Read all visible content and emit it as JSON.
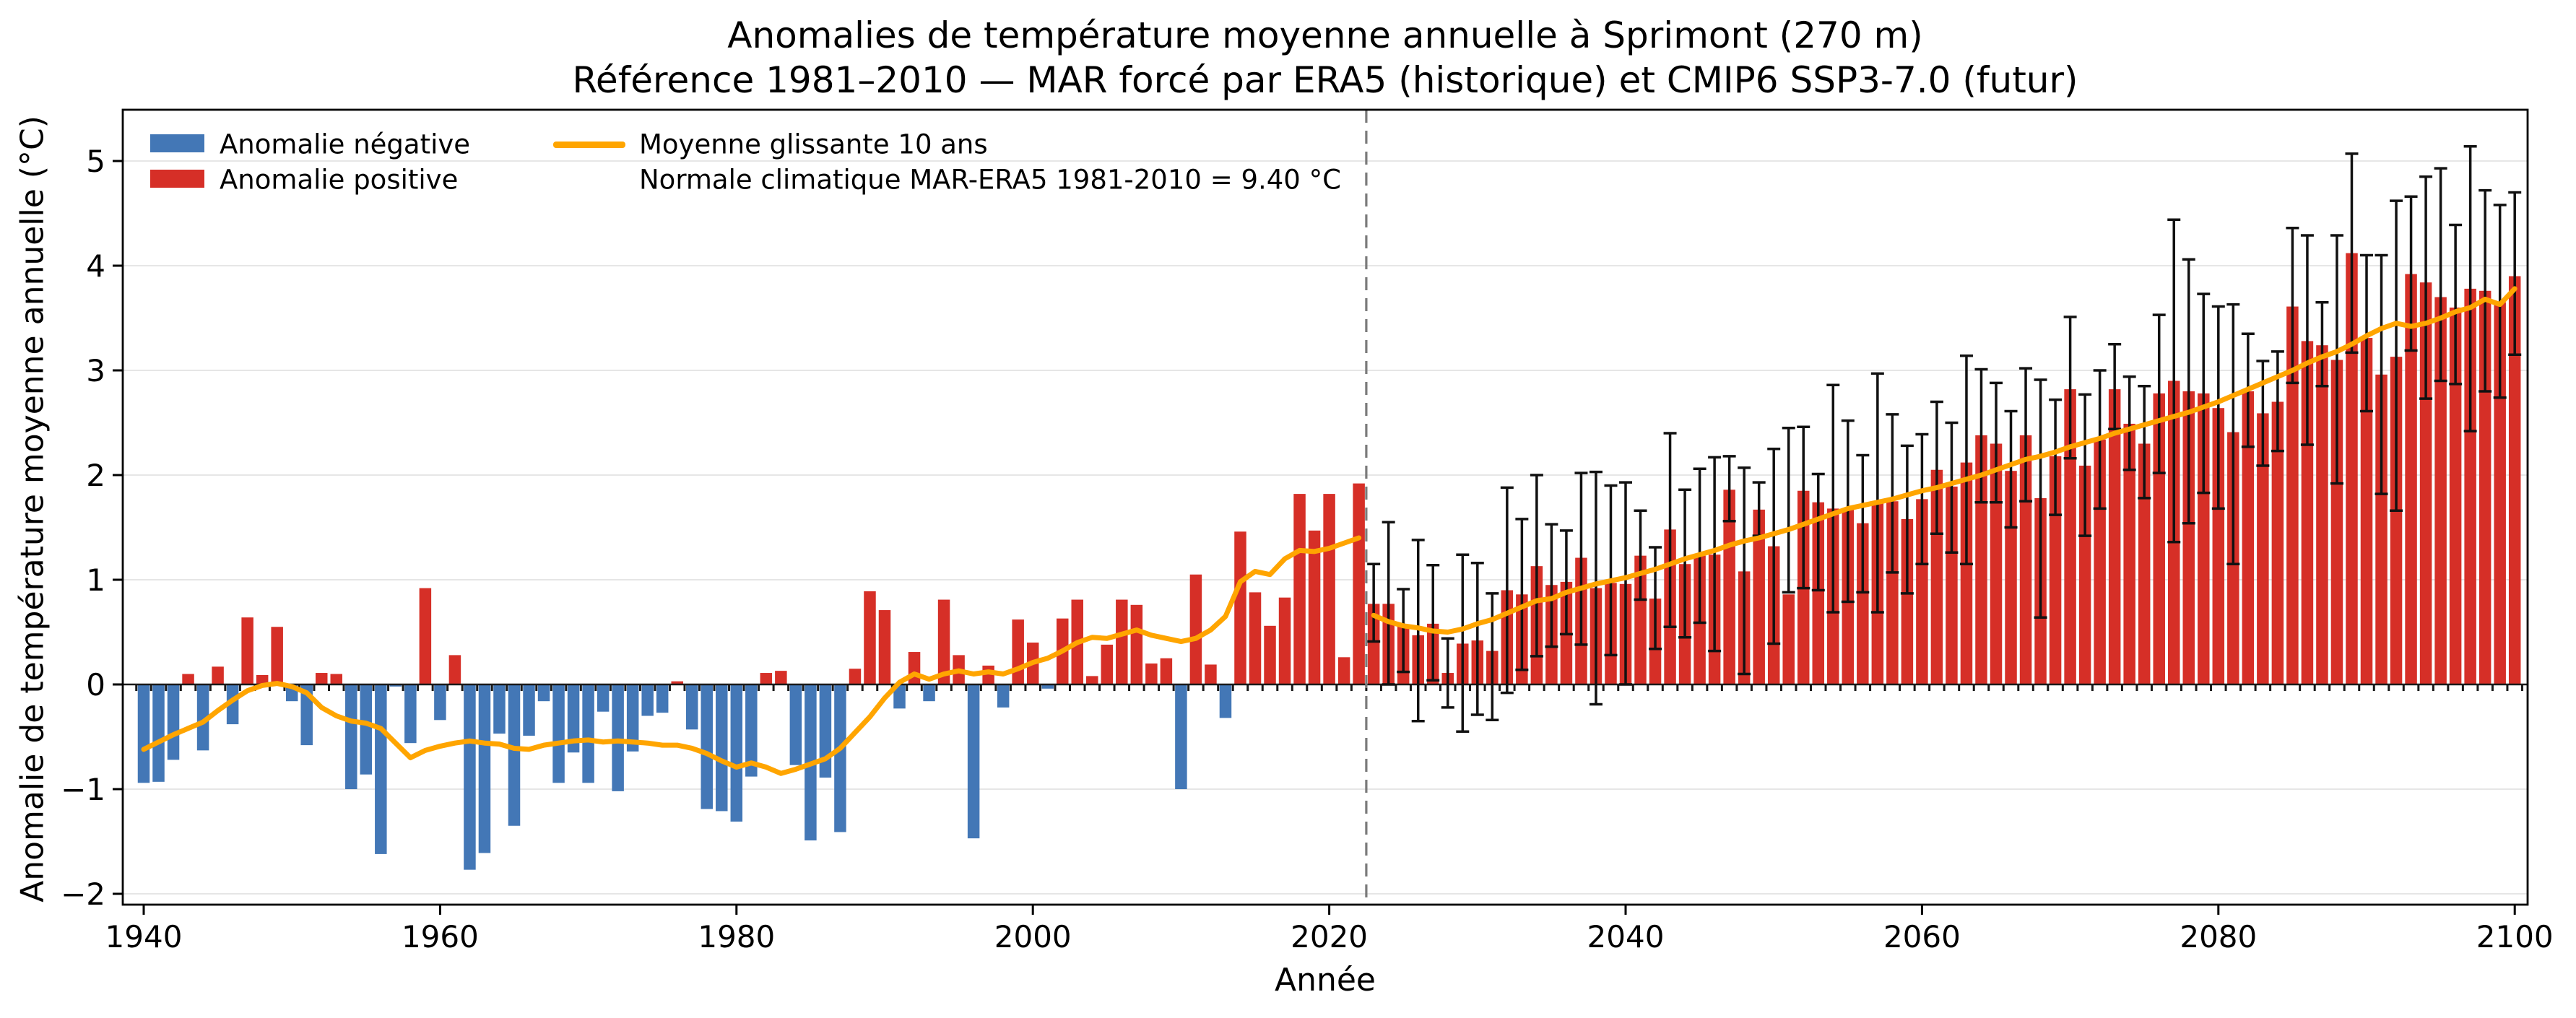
{
  "figure": {
    "title_line1": "Anomalies de température moyenne annuelle à Sprimont (270 m)",
    "title_line2": "Référence 1981–2010 — MAR forcé par ERA5 (historique) et CMIP6 SSP3-7.0 (futur)"
  },
  "legend": {
    "negative_label": "Anomalie négative",
    "positive_label": "Anomalie positive",
    "rolling_label": "Moyenne glissante 10 ans",
    "normal_label": "Normale climatique MAR-ERA5 1981-2010 = 9.40 °C"
  },
  "chart_data": {
    "type": "bar",
    "title": "Anomalies de température moyenne annuelle à Sprimont (270 m)",
    "subtitle": "Référence 1981–2010 — MAR forcé par ERA5 (historique) et CMIP6 SSP3-7.0 (futur)",
    "xlabel": "Année",
    "ylabel": "Anomalie de température moyenne annuelle (°C)",
    "xlim": [
      1938.6,
      2101.0
    ],
    "ylim": [
      -2.07,
      5.49
    ],
    "xticks": [
      1940,
      1960,
      1980,
      2000,
      2020,
      2040,
      2060,
      2080,
      2100
    ],
    "yticks": [
      -2,
      -1,
      0,
      1,
      2,
      3,
      4,
      5
    ],
    "grid": "horizontal-only",
    "legend_position": "upper-left",
    "boundary_year": 2022.5,
    "historical_period": [
      1940,
      2022
    ],
    "future_period": [
      2023,
      2100
    ],
    "colors": {
      "negative": "#4377b6",
      "positive": "#d62f27",
      "rolling": "#ffa500",
      "errorbar": "#111111",
      "zero_line": "#1a1a1a",
      "boundary_line": "#7a7a7a",
      "gridline": "#e6e6e6",
      "spine": "#000000"
    },
    "series": {
      "years": [
        1940,
        1941,
        1942,
        1943,
        1944,
        1945,
        1946,
        1947,
        1948,
        1949,
        1950,
        1951,
        1952,
        1953,
        1954,
        1955,
        1956,
        1957,
        1958,
        1959,
        1960,
        1961,
        1962,
        1963,
        1964,
        1965,
        1966,
        1967,
        1968,
        1969,
        1970,
        1971,
        1972,
        1973,
        1974,
        1975,
        1976,
        1977,
        1978,
        1979,
        1980,
        1981,
        1982,
        1983,
        1984,
        1985,
        1986,
        1987,
        1988,
        1989,
        1990,
        1991,
        1992,
        1993,
        1994,
        1995,
        1996,
        1997,
        1998,
        1999,
        2000,
        2001,
        2002,
        2003,
        2004,
        2005,
        2006,
        2007,
        2008,
        2009,
        2010,
        2011,
        2012,
        2013,
        2014,
        2015,
        2016,
        2017,
        2018,
        2019,
        2020,
        2021,
        2022,
        2023,
        2024,
        2025,
        2026,
        2027,
        2028,
        2029,
        2030,
        2031,
        2032,
        2033,
        2034,
        2035,
        2036,
        2037,
        2038,
        2039,
        2040,
        2041,
        2042,
        2043,
        2044,
        2045,
        2046,
        2047,
        2048,
        2049,
        2050,
        2051,
        2052,
        2053,
        2054,
        2055,
        2056,
        2057,
        2058,
        2059,
        2060,
        2061,
        2062,
        2063,
        2064,
        2065,
        2066,
        2067,
        2068,
        2069,
        2070,
        2071,
        2072,
        2073,
        2074,
        2075,
        2076,
        2077,
        2078,
        2079,
        2080,
        2081,
        2082,
        2083,
        2084,
        2085,
        2086,
        2087,
        2088,
        2089,
        2090,
        2091,
        2092,
        2093,
        2094,
        2095,
        2096,
        2097,
        2098,
        2099,
        2100
      ],
      "anomaly": [
        -0.94,
        -0.93,
        -0.72,
        0.1,
        -0.63,
        0.17,
        -0.38,
        0.64,
        0.09,
        0.55,
        -0.16,
        -0.58,
        0.11,
        0.1,
        -1.0,
        -0.86,
        -1.62,
        -0.02,
        -0.56,
        0.92,
        -0.34,
        0.28,
        -1.77,
        -1.61,
        -0.47,
        -1.35,
        -0.49,
        -0.16,
        -0.94,
        -0.65,
        -0.94,
        -0.26,
        -1.02,
        -0.64,
        -0.3,
        -0.27,
        0.03,
        -0.43,
        -1.19,
        -1.21,
        -1.31,
        -0.88,
        0.11,
        0.13,
        -0.77,
        -1.49,
        -0.89,
        -1.41,
        0.15,
        0.89,
        0.71,
        -0.23,
        0.31,
        -0.16,
        0.81,
        0.28,
        -1.47,
        0.18,
        -0.22,
        0.62,
        0.4,
        -0.04,
        0.63,
        0.81,
        0.08,
        0.38,
        0.81,
        0.76,
        0.2,
        0.25,
        -1.0,
        1.05,
        0.19,
        -0.32,
        1.46,
        0.88,
        0.56,
        0.83,
        1.82,
        1.47,
        1.82,
        0.26,
        1.92,
        0.77,
        0.77,
        0.57,
        0.47,
        0.58,
        0.11,
        0.39,
        0.42,
        0.32,
        0.9,
        0.86,
        1.13,
        0.95,
        0.98,
        1.21,
        0.92,
        0.97,
        0.96,
        1.23,
        0.82,
        1.48,
        1.15,
        1.23,
        1.24,
        1.86,
        1.08,
        1.67,
        1.32,
        0.86,
        1.85,
        1.74,
        1.68,
        1.67,
        1.54,
        1.75,
        1.75,
        1.58,
        1.77,
        2.05,
        1.89,
        2.12,
        2.38,
        2.3,
        2.04,
        2.38,
        1.78,
        2.18,
        2.82,
        2.09,
        2.34,
        2.82,
        2.49,
        2.3,
        2.78,
        2.9,
        2.8,
        2.78,
        2.64,
        2.41,
        2.8,
        2.59,
        2.7,
        3.61,
        3.28,
        3.24,
        3.1,
        4.12,
        3.31,
        2.96,
        3.13,
        3.92,
        3.84,
        3.7,
        3.6,
        3.78,
        3.76,
        3.65,
        3.9
      ],
      "rolling_mean": [
        -0.62,
        -0.55,
        -0.48,
        -0.42,
        -0.36,
        -0.25,
        -0.15,
        -0.06,
        -0.01,
        0.01,
        -0.02,
        -0.08,
        -0.22,
        -0.3,
        -0.35,
        -0.37,
        -0.42,
        -0.56,
        -0.7,
        -0.63,
        -0.59,
        -0.56,
        -0.54,
        -0.56,
        -0.57,
        -0.61,
        -0.62,
        -0.58,
        -0.56,
        -0.54,
        -0.53,
        -0.55,
        -0.54,
        -0.55,
        -0.56,
        -0.58,
        -0.58,
        -0.61,
        -0.66,
        -0.73,
        -0.79,
        -0.75,
        -0.79,
        -0.85,
        -0.81,
        -0.76,
        -0.71,
        -0.61,
        -0.46,
        -0.31,
        -0.13,
        0.02,
        0.1,
        0.05,
        0.1,
        0.13,
        0.1,
        0.12,
        0.1,
        0.15,
        0.21,
        0.25,
        0.32,
        0.4,
        0.45,
        0.44,
        0.48,
        0.52,
        0.47,
        0.44,
        0.41,
        0.44,
        0.52,
        0.65,
        0.98,
        1.08,
        1.05,
        1.2,
        1.28,
        1.27,
        1.3,
        1.35,
        1.4,
        0.66,
        0.6,
        0.56,
        0.54,
        0.51,
        0.5,
        0.53,
        0.58,
        0.62,
        0.68,
        0.74,
        0.8,
        0.82,
        0.88,
        0.92,
        0.96,
        0.99,
        1.02,
        1.06,
        1.1,
        1.15,
        1.2,
        1.24,
        1.28,
        1.33,
        1.37,
        1.4,
        1.44,
        1.48,
        1.53,
        1.58,
        1.63,
        1.68,
        1.71,
        1.74,
        1.77,
        1.81,
        1.85,
        1.88,
        1.92,
        1.96,
        2.0,
        2.05,
        2.1,
        2.15,
        2.18,
        2.22,
        2.27,
        2.31,
        2.35,
        2.4,
        2.44,
        2.48,
        2.52,
        2.56,
        2.6,
        2.65,
        2.7,
        2.76,
        2.82,
        2.88,
        2.94,
        3.0,
        3.07,
        3.13,
        3.18,
        3.25,
        3.33,
        3.4,
        3.45,
        3.42,
        3.45,
        3.5,
        3.56,
        3.6,
        3.68,
        3.63,
        3.78
      ],
      "uncertainty": {
        "year_start": 2023,
        "lo": [
          0.41,
          0.0,
          0.12,
          -0.35,
          0.04,
          -0.22,
          -0.45,
          -0.29,
          -0.34,
          -0.08,
          0.14,
          0.27,
          0.36,
          0.48,
          0.38,
          -0.19,
          0.28,
          0.0,
          0.81,
          0.34,
          0.55,
          0.45,
          0.59,
          0.32,
          1.56,
          0.1,
          1.42,
          0.39,
          0.88,
          0.92,
          0.9,
          0.69,
          0.79,
          0.88,
          0.69,
          1.07,
          0.87,
          1.15,
          1.44,
          1.26,
          1.15,
          1.74,
          1.74,
          1.5,
          1.75,
          0.64,
          1.62,
          2.16,
          1.42,
          1.68,
          2.44,
          2.05,
          1.78,
          2.02,
          1.36,
          1.54,
          1.83,
          1.68,
          1.15,
          2.27,
          2.09,
          2.23,
          2.88,
          2.29,
          2.85,
          1.92,
          3.17,
          2.61,
          1.82,
          1.66,
          3.19,
          2.73,
          2.9,
          2.87,
          2.42,
          2.8,
          2.74,
          3.15
        ],
        "hi": [
          1.15,
          1.55,
          0.91,
          1.38,
          1.14,
          0.44,
          1.24,
          1.16,
          0.87,
          1.88,
          1.58,
          2.0,
          1.53,
          1.47,
          2.02,
          2.03,
          1.9,
          1.93,
          1.66,
          1.31,
          2.4,
          1.86,
          2.06,
          2.17,
          2.18,
          2.07,
          1.93,
          2.25,
          2.45,
          2.46,
          2.01,
          2.86,
          2.52,
          2.19,
          2.97,
          2.58,
          2.28,
          2.39,
          2.7,
          2.5,
          3.14,
          3.01,
          2.88,
          2.61,
          3.02,
          2.91,
          2.72,
          3.51,
          2.77,
          3.0,
          3.25,
          2.94,
          2.85,
          3.53,
          4.44,
          4.06,
          3.73,
          3.61,
          3.63,
          3.35,
          3.09,
          3.18,
          4.36,
          4.29,
          3.65,
          4.29,
          5.07,
          4.1,
          4.1,
          4.62,
          4.66,
          4.85,
          4.93,
          4.39,
          5.14,
          4.72,
          4.58,
          4.7
        ]
      }
    }
  }
}
